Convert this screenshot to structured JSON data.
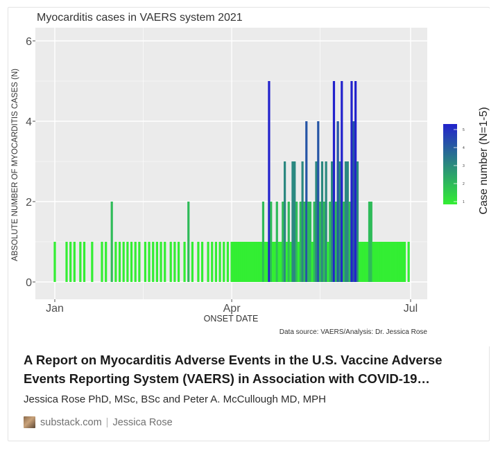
{
  "card": {
    "title": "A Report on Myocarditis Adverse Events in the U.S. Vaccine Adverse Events Reporting System (VAERS) in Association with COVID-19…",
    "byline": "Jessica Rose PhD, MSc, BSc and Peter A. McCullough MD, MPH",
    "source_domain": "substack.com",
    "source_separator": "|",
    "source_author": "Jessica Rose",
    "avatar_icon": "author-avatar"
  },
  "chart_data": {
    "type": "bar",
    "title": "Myocarditis cases in VAERS system 2021",
    "xlabel": "ONSET DATE",
    "ylabel": "ABSOLUTE NUMBER OF MYOCARDITIS CASES (N)",
    "x_ticks": [
      "Jan",
      "Apr",
      "Jul"
    ],
    "y_ticks": [
      "0",
      "2",
      "4",
      "6"
    ],
    "ylim": [
      0,
      6.3
    ],
    "caption": "Data source: VAERS/Analysis: Dr. Jessica Rose",
    "legend": {
      "title": "Case number (N=1-5)",
      "ticks": [
        "1",
        "2",
        "3",
        "4",
        "5"
      ],
      "color_low": "#33ee33",
      "color_high": "#2222cc",
      "position": "right"
    },
    "panel_background": "#ebebeb",
    "grid": true,
    "x": [
      "2021-01-01",
      "2021-01-07",
      "2021-01-09",
      "2021-01-11",
      "2021-01-14",
      "2021-01-16",
      "2021-01-20",
      "2021-01-25",
      "2021-01-27",
      "2021-01-30",
      "2021-02-01",
      "2021-02-03",
      "2021-02-05",
      "2021-02-07",
      "2021-02-09",
      "2021-02-11",
      "2021-02-13",
      "2021-02-16",
      "2021-02-18",
      "2021-02-20",
      "2021-02-22",
      "2021-02-24",
      "2021-02-26",
      "2021-03-01",
      "2021-03-03",
      "2021-03-05",
      "2021-03-08",
      "2021-03-10",
      "2021-03-12",
      "2021-03-15",
      "2021-03-17",
      "2021-03-20",
      "2021-03-22",
      "2021-03-24",
      "2021-03-26",
      "2021-03-28",
      "2021-03-30",
      "2021-04-01",
      "2021-04-02",
      "2021-04-03",
      "2021-04-04",
      "2021-04-05",
      "2021-04-06",
      "2021-04-07",
      "2021-04-08",
      "2021-04-09",
      "2021-04-10",
      "2021-04-11",
      "2021-04-12",
      "2021-04-13",
      "2021-04-14",
      "2021-04-15",
      "2021-04-16",
      "2021-04-17",
      "2021-04-18",
      "2021-04-19",
      "2021-04-20",
      "2021-04-21",
      "2021-04-22",
      "2021-04-23",
      "2021-04-24",
      "2021-04-25",
      "2021-04-26",
      "2021-04-27",
      "2021-04-28",
      "2021-04-29",
      "2021-04-30",
      "2021-05-01",
      "2021-05-02",
      "2021-05-03",
      "2021-05-04",
      "2021-05-05",
      "2021-05-06",
      "2021-05-07",
      "2021-05-08",
      "2021-05-09",
      "2021-05-10",
      "2021-05-11",
      "2021-05-12",
      "2021-05-13",
      "2021-05-14",
      "2021-05-15",
      "2021-05-16",
      "2021-05-17",
      "2021-05-18",
      "2021-05-19",
      "2021-05-20",
      "2021-05-21",
      "2021-05-22",
      "2021-05-23",
      "2021-05-24",
      "2021-05-25",
      "2021-05-26",
      "2021-05-27",
      "2021-05-28",
      "2021-05-29",
      "2021-05-30",
      "2021-05-31",
      "2021-06-01",
      "2021-06-02",
      "2021-06-03",
      "2021-06-04",
      "2021-06-05",
      "2021-06-06",
      "2021-06-07",
      "2021-06-08",
      "2021-06-09",
      "2021-06-10",
      "2021-06-11",
      "2021-06-12",
      "2021-06-13",
      "2021-06-14",
      "2021-06-15",
      "2021-06-16",
      "2021-06-17",
      "2021-06-18",
      "2021-06-19",
      "2021-06-20",
      "2021-06-21",
      "2021-06-22",
      "2021-06-23",
      "2021-06-24",
      "2021-06-25",
      "2021-06-26",
      "2021-06-27",
      "2021-06-28",
      "2021-06-30"
    ],
    "values": [
      1,
      1,
      1,
      1,
      1,
      1,
      1,
      1,
      1,
      2,
      1,
      1,
      1,
      1,
      1,
      1,
      1,
      1,
      1,
      1,
      1,
      1,
      1,
      1,
      1,
      1,
      1,
      2,
      1,
      1,
      1,
      1,
      1,
      1,
      1,
      1,
      1,
      1,
      1,
      1,
      1,
      1,
      1,
      1,
      1,
      1,
      1,
      1,
      1,
      1,
      1,
      1,
      1,
      2,
      1,
      1,
      5,
      2,
      1,
      1,
      2,
      1,
      1,
      2,
      3,
      1,
      2,
      1,
      3,
      3,
      2,
      1,
      2,
      3,
      2,
      4,
      2,
      2,
      1,
      2,
      3,
      4,
      2,
      3,
      2,
      3,
      1,
      2,
      3,
      5,
      2,
      4,
      3,
      5,
      2,
      3,
      3,
      2,
      5,
      4,
      5,
      3,
      1,
      1,
      1,
      1,
      1,
      2,
      2,
      1,
      1,
      1,
      1,
      1,
      1,
      1,
      1,
      1,
      1,
      1,
      1,
      1,
      1,
      1,
      1,
      1,
      1
    ]
  }
}
